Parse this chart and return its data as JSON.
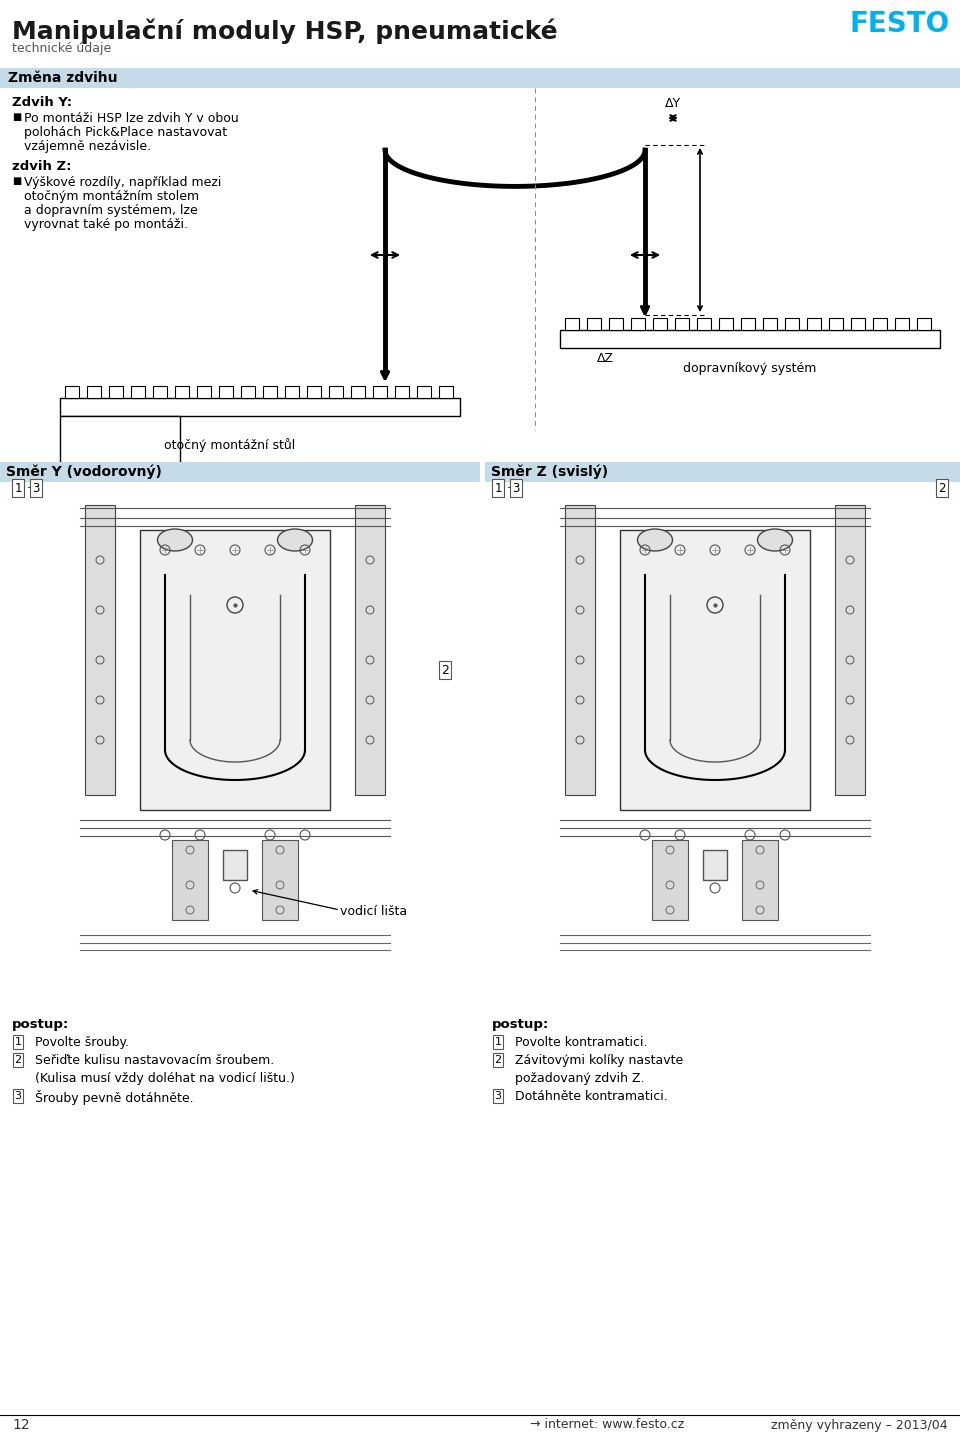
{
  "title": "Manipulační moduly HSP, pneumatické",
  "subtitle": "technické údaje",
  "section_header": "Změna zdvihu",
  "section_bg": "#c5dce8",
  "text_color": "#1a1a1a",
  "festo_color": "#00b0f0",
  "page_num": "12",
  "footer_arrow": "→",
  "footer_text": "internet: www.festo.cz",
  "footer_right": "změny vyhrazeny – 2013/04",
  "label_dopravnikovy": "dopravníkový systém",
  "label_otocny": "otočný montážní stůl",
  "label_delta_y": "ΔY",
  "label_delta_z": "ΔZ",
  "section2_header": "Směr Y (vodorovný)",
  "section3_header": "Směr Z (svislý)",
  "label_vodici": "vodicí lišta",
  "postup_left_title": "postup:",
  "postup_left": [
    [
      "1",
      "Povolte šrouby."
    ],
    [
      "2",
      "Seřiďte kulisu nastavovacím šroubem."
    ],
    [
      "",
      "(Kulisa musí vždy doléhat na vodicí lištu.)"
    ],
    [
      "3",
      "Šrouby pevně dotáhněte."
    ]
  ],
  "postup_right_title": "postup:",
  "postup_right": [
    [
      "1",
      "Povolte kontramatici."
    ],
    [
      "2",
      "Závitovými kolíky nastavte"
    ],
    [
      "",
      "požadovaný zdvih Z."
    ],
    [
      "3",
      "Dotáhněte kontramatici."
    ]
  ]
}
